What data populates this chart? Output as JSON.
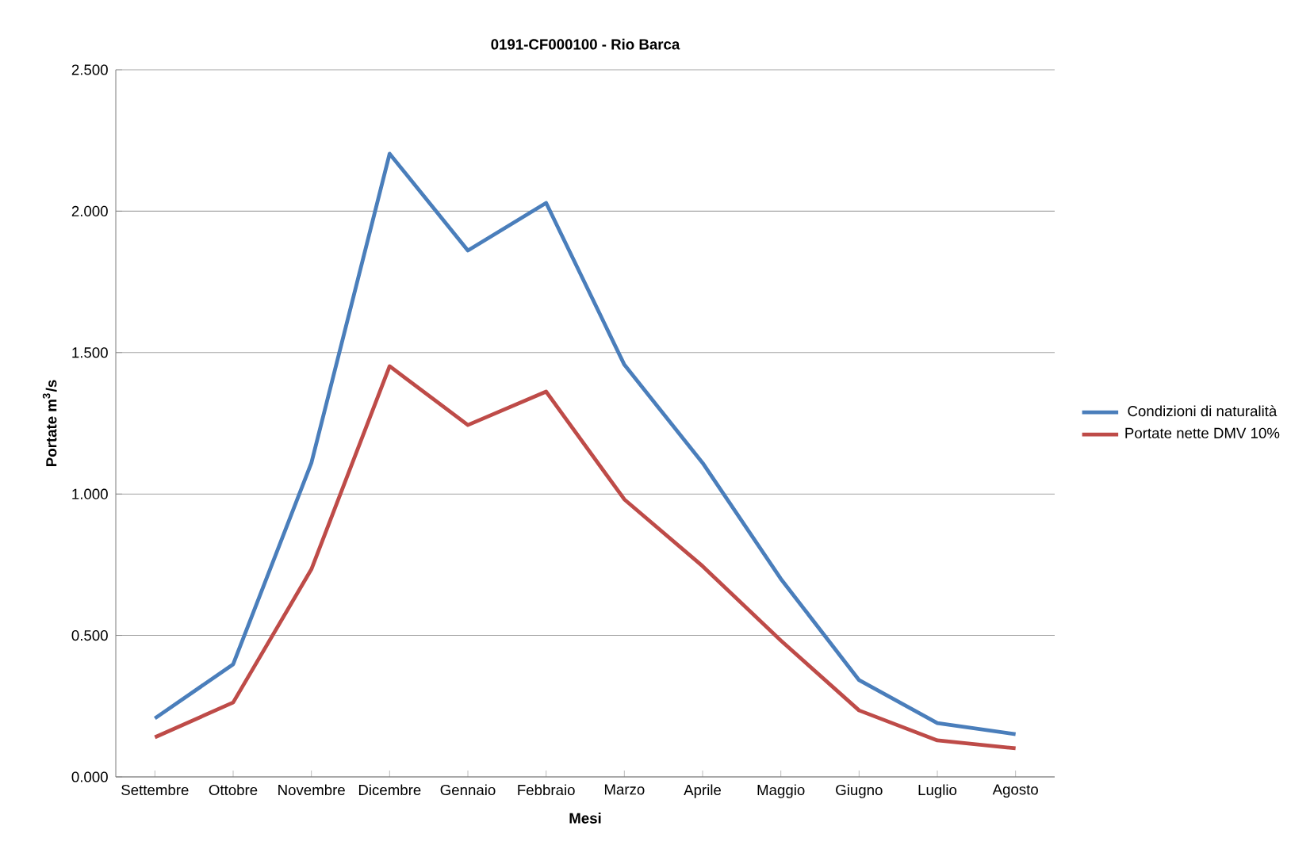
{
  "chart_data": {
    "type": "line",
    "title": "0191-CF000100 - Rio Barca",
    "xlabel": "Mesi",
    "ylabel": "Portate m$^{3}$/s",
    "categories": [
      "Settembre",
      "Ottobre",
      "Novembre",
      "Dicembre",
      "Gennaio",
      "Febbraio",
      "Marzo",
      "Aprile",
      "Maggio",
      "Giugno",
      "Luglio",
      "Agosto"
    ],
    "series": [
      {
        "name": "Condizioni di naturalità",
        "color": "#4a7ebb",
        "values": [
          0.207,
          0.398,
          1.11,
          2.203,
          1.861,
          2.029,
          1.457,
          1.11,
          0.7,
          0.342,
          0.19,
          0.151
        ]
      },
      {
        "name": "Portate nette DMV 10%",
        "color": "#be4b48",
        "values": [
          0.14,
          0.263,
          0.734,
          1.452,
          1.244,
          1.362,
          0.981,
          0.745,
          0.482,
          0.235,
          0.129,
          0.101
        ]
      }
    ],
    "ylim": [
      0,
      2.5
    ],
    "yticks": [
      {
        "value": 0,
        "label": "0.000"
      },
      {
        "value": 0.5,
        "label": "0.500"
      },
      {
        "value": 1,
        "label": "1.000"
      },
      {
        "value": 1.5,
        "label": "1.500"
      },
      {
        "value": 2,
        "label": "2.000"
      },
      {
        "value": 2.5,
        "label": "2.500"
      }
    ],
    "grid": "y",
    "legend": "right",
    "marker": "none",
    "line_style": "solid"
  }
}
